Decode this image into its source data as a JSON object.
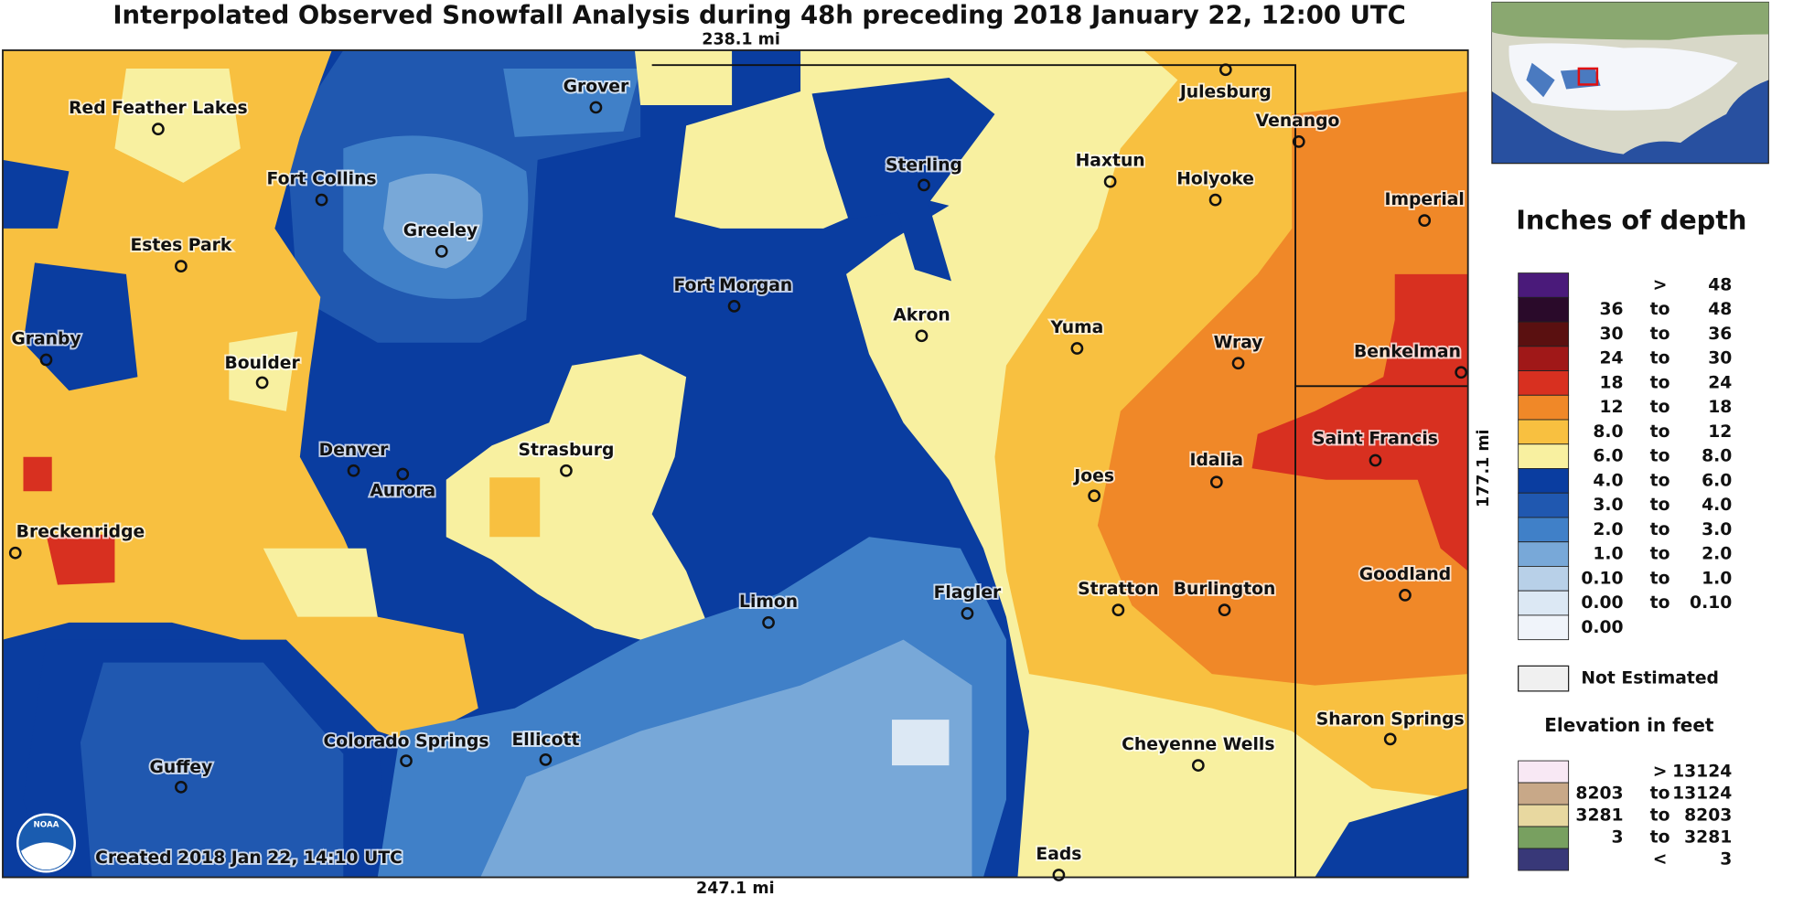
{
  "title": "Interpolated Observed Snowfall Analysis during 48h preceding 2018 January 22, 12:00 UTC",
  "scale": {
    "top": "238.1 mi",
    "bottom": "247.1 mi",
    "right": "177.1 mi"
  },
  "cities": [
    "Red Feather Lakes",
    "Grover",
    "Julesburg",
    "Venango",
    "Fort Collins",
    "Greeley",
    "Sterling",
    "Haxtun",
    "Holyoke",
    "Imperial",
    "Estes Park",
    "Fort Morgan",
    "Akron",
    "Yuma",
    "Wray",
    "Benkelman",
    "Granby",
    "Boulder",
    "Denver",
    "Aurora",
    "Strasburg",
    "Saint Francis",
    "Joes",
    "Idalia",
    "Breckenridge",
    "Limon",
    "Flagler",
    "Stratton",
    "Burlington",
    "Goodland",
    "Colorado Springs",
    "Ellicott",
    "Sharon Springs",
    "Cheyenne Wells",
    "Guffey",
    "Eads"
  ],
  "logo": "NOAA",
  "credit": "Created 2018 Jan 22, 14:10 UTC",
  "legend": {
    "title": "Inches of depth",
    "rows": [
      {
        "sep": ">",
        "high": "48",
        "color": "#4a1a7a"
      },
      {
        "low": "36",
        "sep": "to",
        "high": "48",
        "color": "#2a0a2a"
      },
      {
        "low": "30",
        "sep": "to",
        "high": "36",
        "color": "#5a1010"
      },
      {
        "low": "24",
        "sep": "to",
        "high": "30",
        "color": "#a01818"
      },
      {
        "low": "18",
        "sep": "to",
        "high": "24",
        "color": "#d83020"
      },
      {
        "low": "12",
        "sep": "to",
        "high": "18",
        "color": "#f08828"
      },
      {
        "low": "8.0",
        "sep": "to",
        "high": "12",
        "color": "#f8c040"
      },
      {
        "low": "6.0",
        "sep": "to",
        "high": "8.0",
        "color": "#f8f0a0"
      },
      {
        "low": "4.0",
        "sep": "to",
        "high": "6.0",
        "color": "#0a3da0"
      },
      {
        "low": "3.0",
        "sep": "to",
        "high": "4.0",
        "color": "#2058b0"
      },
      {
        "low": "2.0",
        "sep": "to",
        "high": "3.0",
        "color": "#4080c8"
      },
      {
        "low": "1.0",
        "sep": "to",
        "high": "2.0",
        "color": "#78a8d8"
      },
      {
        "low": "0.10",
        "sep": "to",
        "high": "1.0",
        "color": "#b8d0e8"
      },
      {
        "low": "0.00",
        "sep": "to",
        "high": "0.10",
        "color": "#dce8f4"
      },
      {
        "low": "0.00",
        "color": "#f0f4fa"
      }
    ],
    "not_estimated": "Not Estimated",
    "elevation_title": "Elevation in feet",
    "elevation_rows": [
      {
        "sep": ">",
        "high": "13124",
        "color": "#f8e8f4"
      },
      {
        "low": "8203",
        "sep": "to",
        "high": "13124",
        "color": "#c8a888"
      },
      {
        "low": "3281",
        "sep": "to",
        "high": "8203",
        "color": "#e8d8a0"
      },
      {
        "low": "3",
        "sep": "to",
        "high": "3281",
        "color": "#78a060"
      },
      {
        "sep": "<",
        "high": "3",
        "color": "#383878"
      }
    ]
  }
}
